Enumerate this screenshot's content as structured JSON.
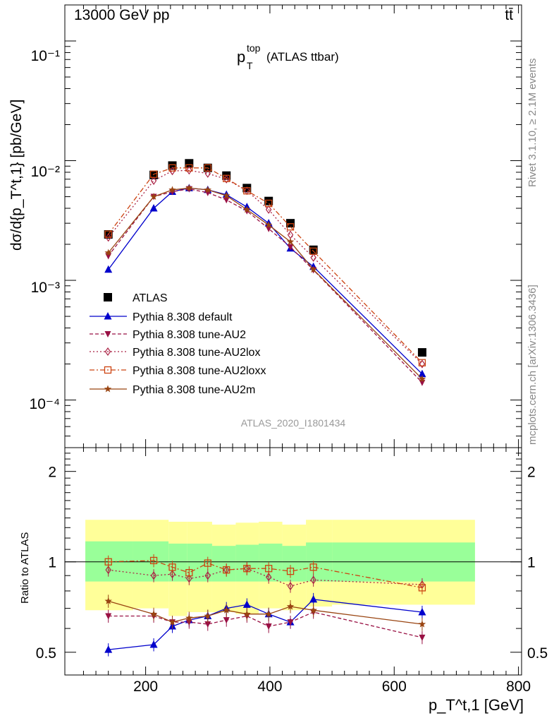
{
  "header": {
    "energy_label": "13000 GeV pp",
    "process_label": "tt̄"
  },
  "side_text": {
    "rivet": "Rivet 3.1.10, ≥ 2.1M events",
    "mcplots": "mcplots.cern.ch [arXiv:1306.3436]"
  },
  "main_plot": {
    "title_main": "p",
    "title_sup": "top",
    "title_sub": "T",
    "title_rest": "(ATLAS ttbar)",
    "ylabel": "dσ/d{p_T^t,1} [pb/GeV]",
    "analysis_id": "ATLAS_2020_I1801434",
    "ytick_labels": [
      "10⁻¹",
      "10⁻²",
      "10⁻³",
      "10⁻⁴"
    ]
  },
  "ratio_plot": {
    "ylabel": "Ratio to ATLAS",
    "ytick_labels": [
      "2",
      "1",
      "0.5"
    ],
    "xtick_labels": [
      "200",
      "400",
      "600",
      "800"
    ],
    "xlabel": "p_T^t,1 [GeV]"
  },
  "legend": [
    {
      "label": "ATLAS"
    },
    {
      "label": "Pythia 8.308 default"
    },
    {
      "label": "Pythia 8.308 tune-AU2"
    },
    {
      "label": "Pythia 8.308 tune-AU2lox"
    },
    {
      "label": "Pythia 8.308 tune-AU2loxx"
    },
    {
      "label": "Pythia 8.308 tune-AU2m"
    }
  ],
  "chart_data": {
    "type": "scatter",
    "x_scale": "linear",
    "y_scale": "log",
    "xlim": [
      70,
      805
    ],
    "ylim_main": [
      4e-05,
      0.2
    ],
    "ylim_ratio": [
      0.42,
      2.4
    ],
    "x": [
      140,
      213,
      243,
      270,
      300,
      330,
      363,
      398,
      433,
      470,
      645
    ],
    "series": [
      {
        "name": "ATLAS",
        "color": "#000000",
        "marker": "square",
        "values": [
          0.00242,
          0.0076,
          0.0091,
          0.0095,
          0.0087,
          0.0075,
          0.0059,
          0.0046,
          0.003,
          0.0018,
          0.00025
        ]
      },
      {
        "name": "Pythia 8.308 default",
        "color": "#0000cc",
        "marker": "triangle-up",
        "style": "solid",
        "values": [
          0.00123,
          0.004,
          0.0055,
          0.0059,
          0.0057,
          0.0052,
          0.0041,
          0.003,
          0.00185,
          0.0013,
          0.000165
        ],
        "ratio": [
          0.51,
          0.53,
          0.61,
          0.64,
          0.66,
          0.7,
          0.72,
          0.67,
          0.63,
          0.75,
          0.68
        ]
      },
      {
        "name": "Pythia 8.308 tune-AU2",
        "color": "#991144",
        "marker": "triangle-down",
        "style": "dashed",
        "values": [
          0.0016,
          0.005,
          0.0055,
          0.0058,
          0.0054,
          0.0047,
          0.0038,
          0.0027,
          0.0019,
          0.00122,
          0.00014
        ],
        "ratio": [
          0.66,
          0.66,
          0.63,
          0.63,
          0.62,
          0.64,
          0.66,
          0.61,
          0.63,
          0.68,
          0.56
        ]
      },
      {
        "name": "Pythia 8.308 tune-AU2lox",
        "color": "#aa2244",
        "marker": "diamond-open",
        "style": "dotted",
        "values": [
          0.00228,
          0.0068,
          0.0082,
          0.0083,
          0.0078,
          0.007,
          0.0056,
          0.0039,
          0.0024,
          0.00155,
          0.0002
        ],
        "ratio": [
          0.94,
          0.9,
          0.91,
          0.88,
          0.9,
          0.94,
          0.95,
          0.89,
          0.83,
          0.87,
          0.84
        ]
      },
      {
        "name": "Pythia 8.308 tune-AU2loxx",
        "color": "#cc4411",
        "marker": "square-open",
        "style": "dashdot",
        "values": [
          0.00243,
          0.0077,
          0.0087,
          0.0087,
          0.0087,
          0.0071,
          0.0056,
          0.0044,
          0.0028,
          0.00175,
          0.000205
        ],
        "ratio": [
          1.0,
          1.01,
          0.96,
          0.92,
          0.99,
          0.94,
          0.95,
          0.95,
          0.93,
          0.96,
          0.82
        ]
      },
      {
        "name": "Pythia 8.308 tune-AU2m",
        "color": "#994411",
        "marker": "star",
        "style": "solid",
        "values": [
          0.0017,
          0.005,
          0.0057,
          0.0059,
          0.0057,
          0.0051,
          0.0039,
          0.0029,
          0.0021,
          0.00123,
          0.00015
        ],
        "ratio": [
          0.74,
          0.67,
          0.63,
          0.65,
          0.66,
          0.69,
          0.67,
          0.67,
          0.71,
          0.69,
          0.62
        ]
      }
    ],
    "error_bands": {
      "bin_edges": [
        103,
        180,
        237,
        267,
        307,
        345,
        382,
        420,
        458,
        500,
        730
      ],
      "inner_lo": [
        0.86,
        0.86,
        0.86,
        0.86,
        0.86,
        0.86,
        0.86,
        0.86,
        0.86,
        0.86
      ],
      "inner_hi": [
        1.17,
        1.17,
        1.15,
        1.15,
        1.13,
        1.14,
        1.15,
        1.13,
        1.16,
        1.16
      ],
      "outer_lo": [
        0.69,
        0.7,
        0.66,
        0.68,
        0.68,
        0.67,
        0.7,
        0.69,
        0.71,
        0.72
      ],
      "outer_hi": [
        1.38,
        1.38,
        1.36,
        1.36,
        1.33,
        1.35,
        1.36,
        1.33,
        1.38,
        1.38
      ]
    }
  }
}
